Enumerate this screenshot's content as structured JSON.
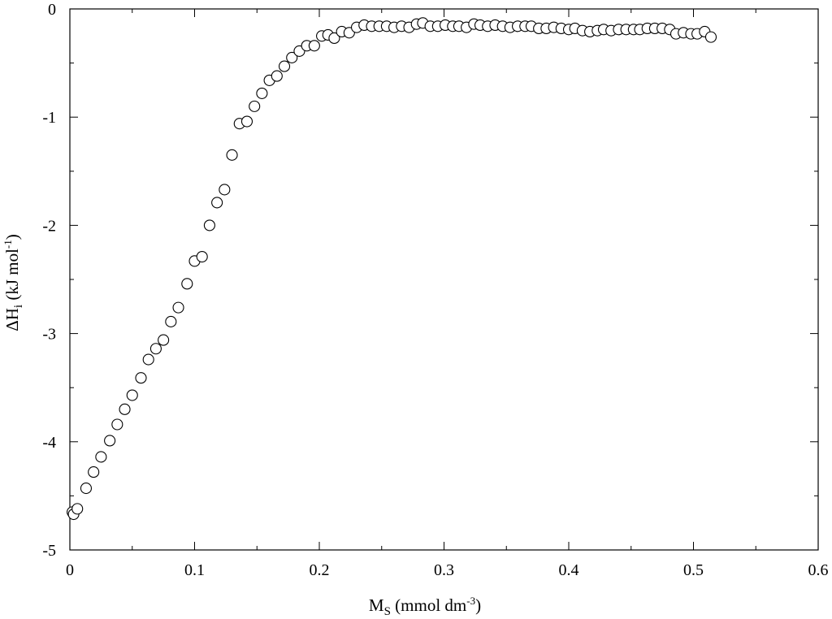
{
  "chart_data": {
    "type": "scatter",
    "xlabel": {
      "main": "M",
      "sub": "S",
      "rest": " (mmol dm",
      "sup": "-3",
      "close": ")"
    },
    "ylabel": {
      "main": "ΔH",
      "sub": "i",
      "rest": " (kJ mol",
      "sup": "-1",
      "close": ")"
    },
    "xlim": [
      0,
      0.6
    ],
    "ylim": [
      -5,
      0
    ],
    "x_ticks": [
      0,
      0.1,
      0.2,
      0.3,
      0.4,
      0.5,
      0.6
    ],
    "x_tick_labels": [
      "0",
      "0.1",
      "0.2",
      "0.3",
      "0.4",
      "0.5",
      "0.6"
    ],
    "y_ticks": [
      0,
      -1,
      -2,
      -3,
      -4,
      -5
    ],
    "y_tick_labels": [
      "0",
      "-1",
      "-2",
      "-3",
      "-4",
      "-5"
    ],
    "grid": false,
    "marker": "open-circle",
    "marker_color": "#000000",
    "series": [
      {
        "x": [
          0.002,
          0.003,
          0.006,
          0.013,
          0.019,
          0.025,
          0.032,
          0.038,
          0.044,
          0.05,
          0.057,
          0.063,
          0.069,
          0.075,
          0.081,
          0.087,
          0.094,
          0.1,
          0.106,
          0.112,
          0.118,
          0.124,
          0.13,
          0.136,
          0.142,
          0.148,
          0.154,
          0.16,
          0.166,
          0.172,
          0.178,
          0.184,
          0.19,
          0.196,
          0.202,
          0.207,
          0.212,
          0.218,
          0.224,
          0.23,
          0.236,
          0.242,
          0.248,
          0.254,
          0.26,
          0.266,
          0.272,
          0.278,
          0.283,
          0.289,
          0.295,
          0.301,
          0.307,
          0.312,
          0.318,
          0.324,
          0.329,
          0.335,
          0.341,
          0.347,
          0.353,
          0.359,
          0.365,
          0.37,
          0.376,
          0.382,
          0.388,
          0.394,
          0.4,
          0.405,
          0.411,
          0.417,
          0.423,
          0.428,
          0.434,
          0.44,
          0.446,
          0.452,
          0.457,
          0.463,
          0.469,
          0.475,
          0.481,
          0.486,
          0.492,
          0.498,
          0.503,
          0.509,
          0.514
        ],
        "y": [
          -4.65,
          -4.67,
          -4.62,
          -4.43,
          -4.28,
          -4.14,
          -3.99,
          -3.84,
          -3.7,
          -3.57,
          -3.41,
          -3.24,
          -3.14,
          -3.06,
          -2.89,
          -2.76,
          -2.54,
          -2.33,
          -2.29,
          -2.0,
          -1.79,
          -1.67,
          -1.35,
          -1.06,
          -1.04,
          -0.9,
          -0.78,
          -0.66,
          -0.62,
          -0.53,
          -0.45,
          -0.39,
          -0.34,
          -0.34,
          -0.25,
          -0.24,
          -0.27,
          -0.21,
          -0.22,
          -0.17,
          -0.15,
          -0.16,
          -0.16,
          -0.16,
          -0.17,
          -0.16,
          -0.17,
          -0.14,
          -0.13,
          -0.16,
          -0.16,
          -0.15,
          -0.16,
          -0.16,
          -0.17,
          -0.14,
          -0.15,
          -0.16,
          -0.15,
          -0.16,
          -0.17,
          -0.16,
          -0.16,
          -0.16,
          -0.18,
          -0.18,
          -0.17,
          -0.18,
          -0.19,
          -0.18,
          -0.2,
          -0.21,
          -0.2,
          -0.19,
          -0.2,
          -0.19,
          -0.19,
          -0.19,
          -0.19,
          -0.18,
          -0.18,
          -0.18,
          -0.19,
          -0.23,
          -0.22,
          -0.23,
          -0.23,
          -0.21,
          -0.26
        ]
      }
    ]
  }
}
